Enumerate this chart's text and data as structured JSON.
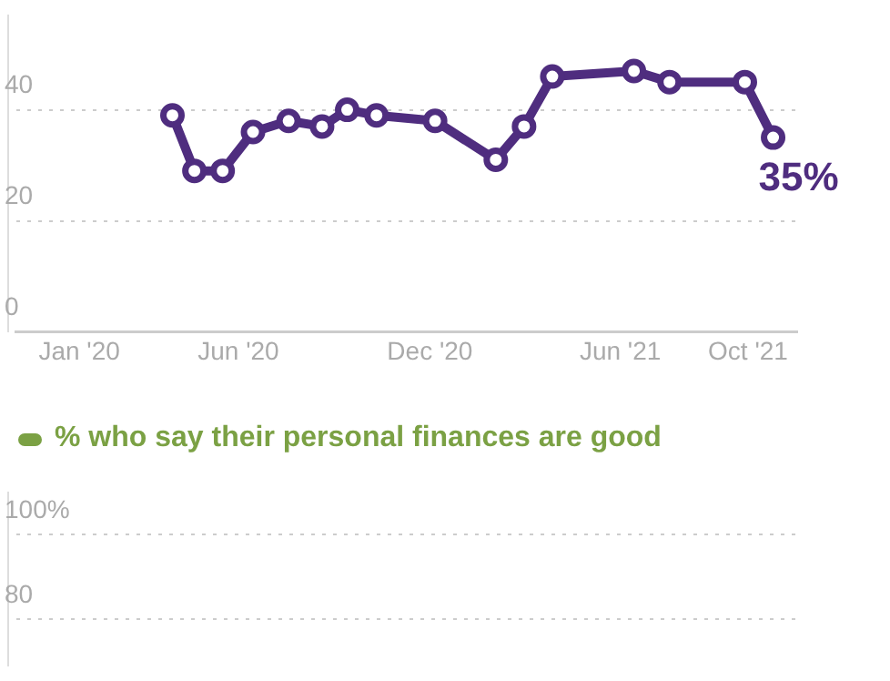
{
  "chart_data": [
    {
      "type": "line",
      "x": [
        "2020-03-30",
        "2020-04-20",
        "2020-05-17",
        "2020-06-15",
        "2020-07-19",
        "2020-08-20",
        "2020-09-13",
        "2020-10-11",
        "2020-12-06",
        "2021-02-02",
        "2021-03-01",
        "2021-03-28",
        "2021-06-14",
        "2021-07-18",
        "2021-09-28",
        "2021-10-25"
      ],
      "series": [
        {
          "color": "#4f2d7f",
          "values": [
            39,
            29,
            29,
            36,
            38,
            37,
            40,
            39,
            38,
            31,
            37,
            46,
            47,
            45,
            45,
            35
          ]
        }
      ],
      "xlim": [
        "2019-11-01",
        "2021-11-17"
      ],
      "ylim": [
        0,
        57
      ],
      "xticks": [
        {
          "value": "2020-01-01",
          "label": "Jan '20"
        },
        {
          "value": "2020-06-01",
          "label": "Jun '20"
        },
        {
          "value": "2020-12-01",
          "label": "Dec '20"
        },
        {
          "value": "2021-06-01",
          "label": "Jun '21"
        },
        {
          "value": "2021-10-01",
          "label": "Oct '21"
        }
      ],
      "yticks": [
        0,
        20,
        40
      ],
      "grid": "y",
      "marker": "circle",
      "annotations": [
        {
          "text": "35%",
          "x": "2021-10-25",
          "y": 35
        }
      ]
    },
    {
      "type": "line",
      "categories": [
        null,
        null,
        null,
        null
      ],
      "series": [
        {
          "name": "% who say their personal finances are good",
          "color": "#7ba144",
          "values": [
            null,
            null,
            null,
            null
          ]
        }
      ],
      "ylim": [
        69,
        110
      ],
      "yticks": [
        {
          "value": 100,
          "label": "100%"
        },
        80
      ],
      "grid": "y",
      "marker": "circle",
      "legend": "top left",
      "tick_labels": "y"
    }
  ]
}
